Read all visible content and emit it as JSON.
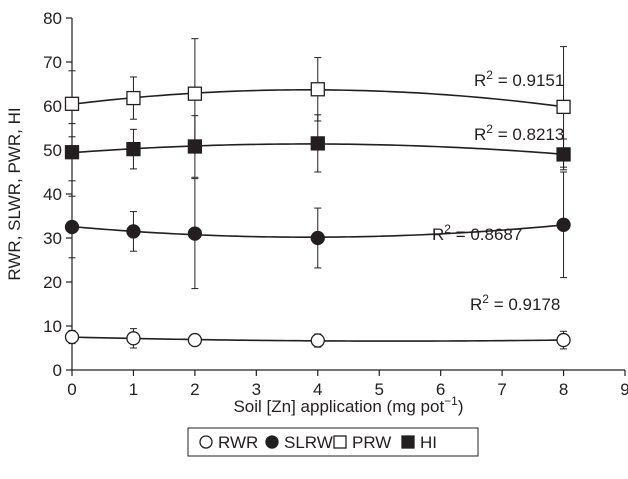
{
  "chart_data": {
    "type": "line",
    "title": "",
    "xlabel": "Soil [Zn] application (mg pot",
    "xlabel_sup": "−1",
    "xlabel_suffix": ")",
    "ylabel": "RWR, SLWR, PWR, HI",
    "xlim": [
      0,
      9
    ],
    "ylim": [
      0,
      80
    ],
    "x_ticks": [
      0,
      1,
      2,
      3,
      4,
      5,
      6,
      7,
      8,
      9
    ],
    "y_ticks": [
      0,
      10,
      20,
      30,
      40,
      50,
      60,
      70,
      80
    ],
    "grid": false,
    "legend_position": "bottom-center",
    "x": [
      0,
      1,
      2,
      4,
      8
    ],
    "series": [
      {
        "name": "RWR",
        "marker": "open-circle",
        "values": [
          7.5,
          7.2,
          6.8,
          6.7,
          6.8
        ],
        "errors": [
          1.5,
          2.2,
          1.3,
          1.5,
          2.0
        ],
        "r2": "R² = 0.9178",
        "r2_prefix": "R",
        "r2_sup": "2",
        "r2_suffix": " = 0.9178"
      },
      {
        "name": "SLRW",
        "marker": "filled-circle",
        "values": [
          32.5,
          31.5,
          31.0,
          30.0,
          33.0
        ],
        "errors": [
          7.0,
          4.5,
          12.5,
          6.8,
          12.0
        ],
        "r2": "R² = 0.8687",
        "r2_prefix": "R",
        "r2_sup": "2",
        "r2_suffix": " = 0.8687"
      },
      {
        "name": "PRW",
        "marker": "open-square",
        "values": [
          60.5,
          61.8,
          62.8,
          63.8,
          59.8
        ],
        "errors": [
          7.5,
          4.8,
          12.5,
          7.2,
          13.7
        ],
        "r2": "R² = 0.9151",
        "r2_prefix": "R",
        "r2_sup": "2",
        "r2_suffix": " = 0.9151"
      },
      {
        "name": "HI",
        "marker": "filled-square",
        "values": [
          49.5,
          50.2,
          50.8,
          51.5,
          49.0
        ],
        "errors": [
          6.5,
          4.5,
          7.0,
          6.5,
          3.5
        ],
        "r2": "R² = 0.8213",
        "r2_prefix": "R",
        "r2_sup": "2",
        "r2_suffix": " = 0.8213"
      }
    ],
    "colors": {
      "ink": "#231f20",
      "marker_fill_open": "#ffffff",
      "marker_fill_solid": "#231f20"
    }
  }
}
